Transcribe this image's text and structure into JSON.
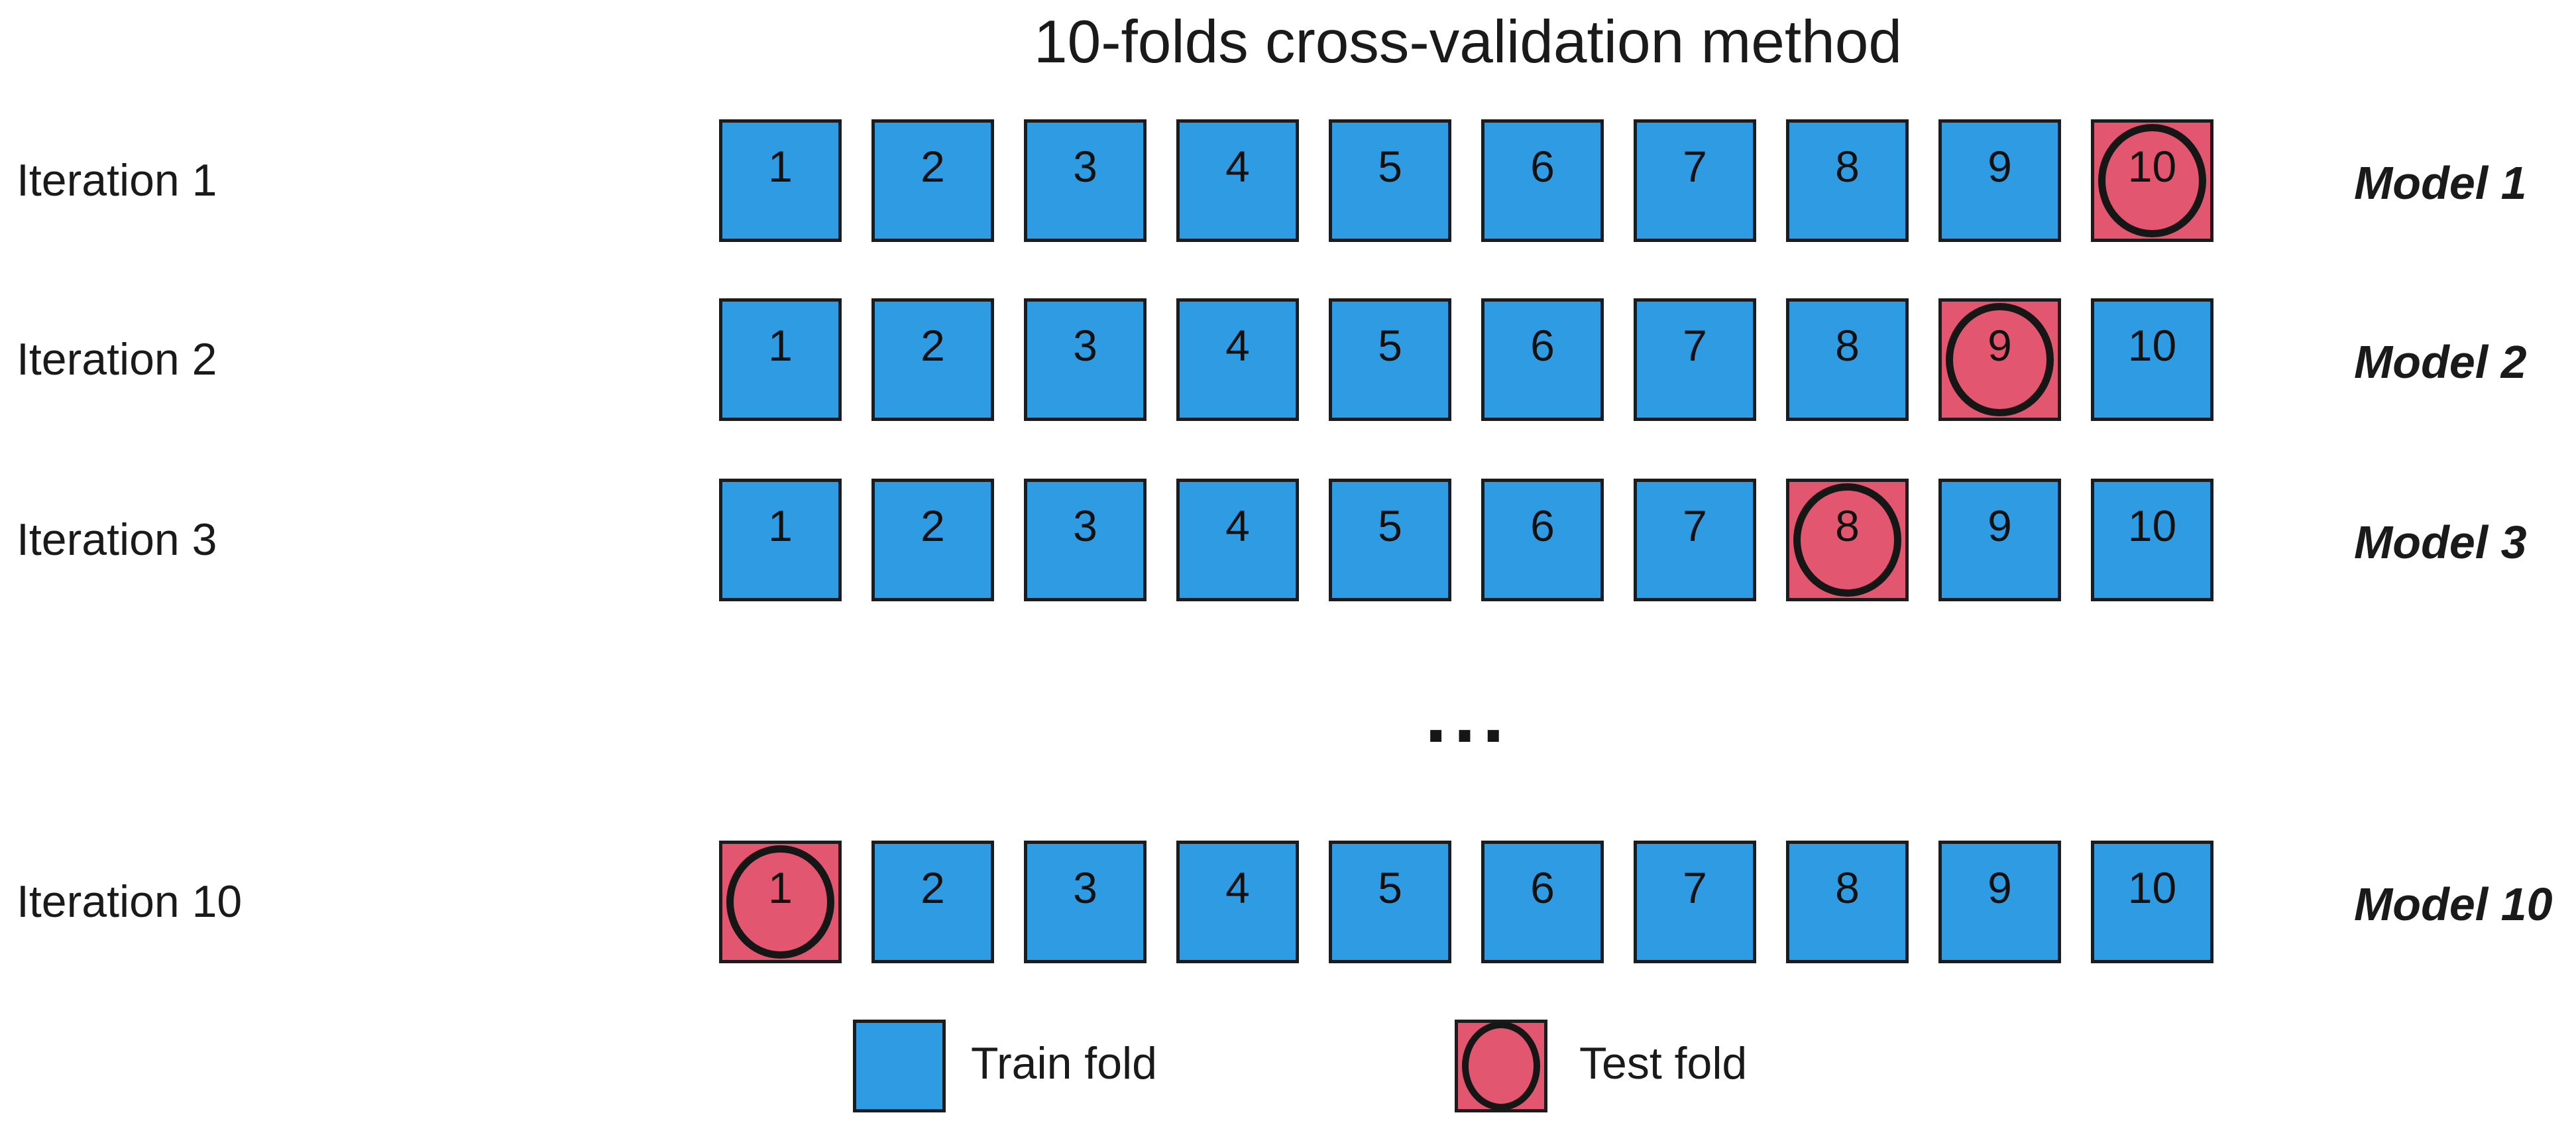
{
  "title": "10-folds cross-validation method",
  "ellipsis": "...",
  "colors": {
    "train_fill": "#2E9BE2",
    "test_fill": "#E2566F",
    "stroke": "#1C1C1E",
    "text": "#1A1A1A"
  },
  "rows": [
    {
      "iteration_label": "Iteration 1",
      "model_label": "Model 1",
      "folds": [
        1,
        2,
        3,
        4,
        5,
        6,
        7,
        8,
        9,
        10
      ],
      "test_fold": 10
    },
    {
      "iteration_label": "Iteration 2",
      "model_label": "Model 2",
      "folds": [
        1,
        2,
        3,
        4,
        5,
        6,
        7,
        8,
        9,
        10
      ],
      "test_fold": 9
    },
    {
      "iteration_label": "Iteration 3",
      "model_label": "Model 3",
      "folds": [
        1,
        2,
        3,
        4,
        5,
        6,
        7,
        8,
        9,
        10
      ],
      "test_fold": 8
    },
    {
      "iteration_label": "Iteration 10",
      "model_label": "Model 10",
      "folds": [
        1,
        2,
        3,
        4,
        5,
        6,
        7,
        8,
        9,
        10
      ],
      "test_fold": 1
    }
  ],
  "legend": {
    "train_label": "Train fold",
    "test_label": "Test fold"
  }
}
